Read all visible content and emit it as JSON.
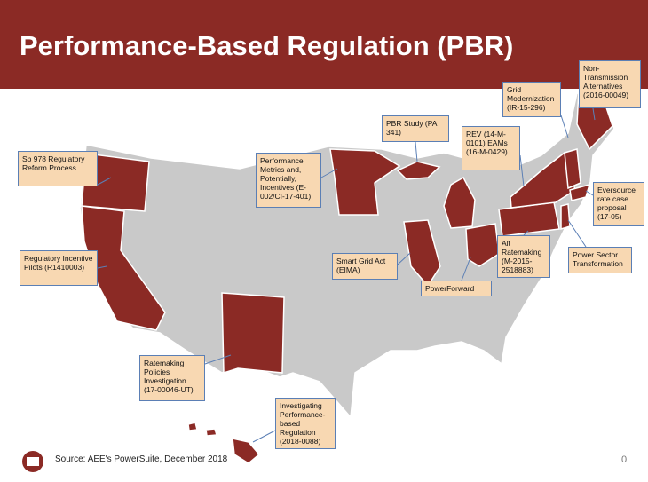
{
  "header": {
    "title": "Performance-Based Regulation (PBR)"
  },
  "callouts": [
    "Sb 978 Regulatory Reform Process",
    "Regulatory Incentive Pilots (R1410003)",
    "Performance Metrics and, Potentially, Incentives (E-002/CI-17-401)",
    "PBR Study (PA 341)",
    "REV (14-M-0101) EAMs (16-M-0429)",
    "Grid Modernization (IR-15-296)",
    "Non-Transmission Alternatives (2016-00049)",
    "Eversource rate case proposal (17-05)",
    "Power Sector Transformation",
    "Alt Ratemaking (M-2015-2518883)",
    "Smart Grid Act (EIMA)",
    "PowerForward",
    "Ratemaking Policies Investigation (17-00046-UT)",
    "Investigating Performance-based Regulation (2018-0088)"
  ],
  "footer": {
    "source": "Source: AEE's PowerSuite, December 2018",
    "page": "0"
  }
}
